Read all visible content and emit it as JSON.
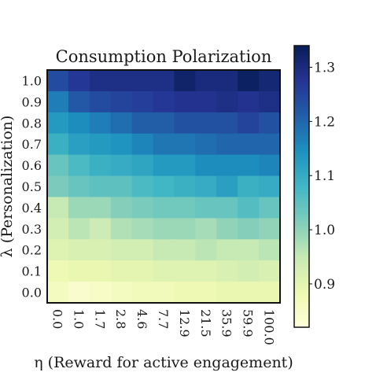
{
  "chart_data": {
    "type": "heatmap",
    "title": "Consumption Polarization",
    "xlabel": "η (Reward for active engagement)",
    "ylabel": "λ (Personalization)",
    "x_categories": [
      "0.0",
      "1.0",
      "1.7",
      "2.8",
      "4.6",
      "7.7",
      "12.9",
      "21.5",
      "35.9",
      "59.9",
      "100.0"
    ],
    "y_categories": [
      "1.0",
      "0.9",
      "0.8",
      "0.7",
      "0.6",
      "0.5",
      "0.4",
      "0.3",
      "0.2",
      "0.1",
      "0.0"
    ],
    "values": [
      [
        1.24,
        1.27,
        1.29,
        1.29,
        1.29,
        1.29,
        1.32,
        1.3,
        1.3,
        1.33,
        1.31
      ],
      [
        1.17,
        1.22,
        1.24,
        1.25,
        1.26,
        1.27,
        1.28,
        1.28,
        1.29,
        1.28,
        1.29
      ],
      [
        1.13,
        1.15,
        1.17,
        1.19,
        1.21,
        1.21,
        1.23,
        1.23,
        1.23,
        1.25,
        1.23
      ],
      [
        1.09,
        1.12,
        1.13,
        1.14,
        1.16,
        1.18,
        1.18,
        1.19,
        1.2,
        1.2,
        1.2
      ],
      [
        1.04,
        1.07,
        1.09,
        1.1,
        1.11,
        1.13,
        1.13,
        1.15,
        1.15,
        1.15,
        1.16
      ],
      [
        1.02,
        1.04,
        1.05,
        1.05,
        1.07,
        1.08,
        1.09,
        1.1,
        1.12,
        1.09,
        1.1
      ],
      [
        0.95,
        0.99,
        0.99,
        1.01,
        1.02,
        1.03,
        1.03,
        1.04,
        1.04,
        1.06,
        1.04
      ],
      [
        0.93,
        0.96,
        0.94,
        0.97,
        0.98,
        0.99,
        0.99,
        0.98,
        1.0,
        1.01,
        1.0
      ],
      [
        0.91,
        0.92,
        0.92,
        0.93,
        0.93,
        0.95,
        0.95,
        0.96,
        0.95,
        0.95,
        0.96
      ],
      [
        0.88,
        0.89,
        0.89,
        0.9,
        0.9,
        0.91,
        0.91,
        0.91,
        0.92,
        0.93,
        0.92
      ],
      [
        0.86,
        0.84,
        0.85,
        0.86,
        0.87,
        0.87,
        0.88,
        0.88,
        0.89,
        0.89,
        0.89
      ]
    ],
    "colorbar": {
      "min": 0.82,
      "max": 1.34,
      "ticks": [
        "0.9",
        "1.0",
        "1.1",
        "1.2",
        "1.3"
      ]
    },
    "colormap": [
      "#ffffd9",
      "#edf8b1",
      "#c7e9b4",
      "#7fcdbb",
      "#41b6c4",
      "#1d91c0",
      "#225ea8",
      "#253494",
      "#081d58"
    ],
    "grid": false
  }
}
